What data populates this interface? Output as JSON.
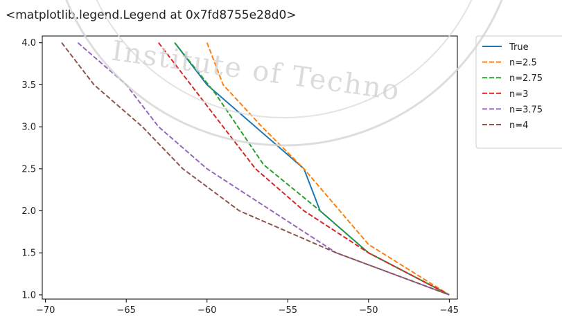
{
  "output_text": "<matplotlib.legend.Legend at 0x7fd8755e28d0>",
  "watermark_text": "Institute of Techno",
  "chart_data": {
    "type": "line",
    "title": "",
    "xlabel": "",
    "ylabel": "",
    "xlim": [
      -70.2,
      -44.5
    ],
    "ylim": [
      0.95,
      4.08
    ],
    "xticks": [
      -70,
      -65,
      -60,
      -55,
      -50,
      -45
    ],
    "xtick_labels": [
      "−70",
      "−65",
      "−60",
      "−55",
      "−50",
      "−45"
    ],
    "yticks": [
      1.0,
      1.5,
      2.0,
      2.5,
      3.0,
      3.5,
      4.0
    ],
    "ytick_labels": [
      "1.0",
      "1.5",
      "2.0",
      "2.5",
      "3.0",
      "3.5",
      "4.0"
    ],
    "grid": false,
    "legend_position": "outside-top-right",
    "series": [
      {
        "name": "True",
        "color": "#1f77b4",
        "dashed": false,
        "x": [
          -62,
          -60,
          -57,
          -54,
          -53,
          -50,
          -45
        ],
        "y": [
          4.0,
          3.5,
          3.0,
          2.5,
          2.0,
          1.5,
          1.0
        ]
      },
      {
        "name": "n=2.5",
        "color": "#ff7f0e",
        "dashed": true,
        "x": [
          -60,
          -59,
          -56.6,
          -54,
          -50,
          -45
        ],
        "y": [
          4.0,
          3.5,
          3.0,
          2.5,
          1.6,
          1.0
        ]
      },
      {
        "name": "n=2.75",
        "color": "#2ca02c",
        "dashed": true,
        "x": [
          -62,
          -59.5,
          -56.5,
          -53,
          -50,
          -45
        ],
        "y": [
          4.0,
          3.4,
          2.55,
          2.0,
          1.5,
          1.0
        ]
      },
      {
        "name": "n=3",
        "color": "#d62728",
        "dashed": true,
        "x": [
          -63,
          -60,
          -57,
          -54,
          -50,
          -45
        ],
        "y": [
          4.0,
          3.25,
          2.5,
          2.0,
          1.5,
          1.0
        ]
      },
      {
        "name": "n=3.75",
        "color": "#9467bd",
        "dashed": true,
        "x": [
          -68,
          -65,
          -63,
          -60,
          -56,
          -52,
          -45
        ],
        "y": [
          4.0,
          3.5,
          3.0,
          2.5,
          2.0,
          1.5,
          1.0
        ]
      },
      {
        "name": "n=4",
        "color": "#8c564b",
        "dashed": true,
        "x": [
          -69,
          -67,
          -64,
          -61.5,
          -58,
          -52,
          -45
        ],
        "y": [
          4.0,
          3.5,
          3.0,
          2.5,
          2.0,
          1.5,
          1.0
        ]
      }
    ]
  }
}
